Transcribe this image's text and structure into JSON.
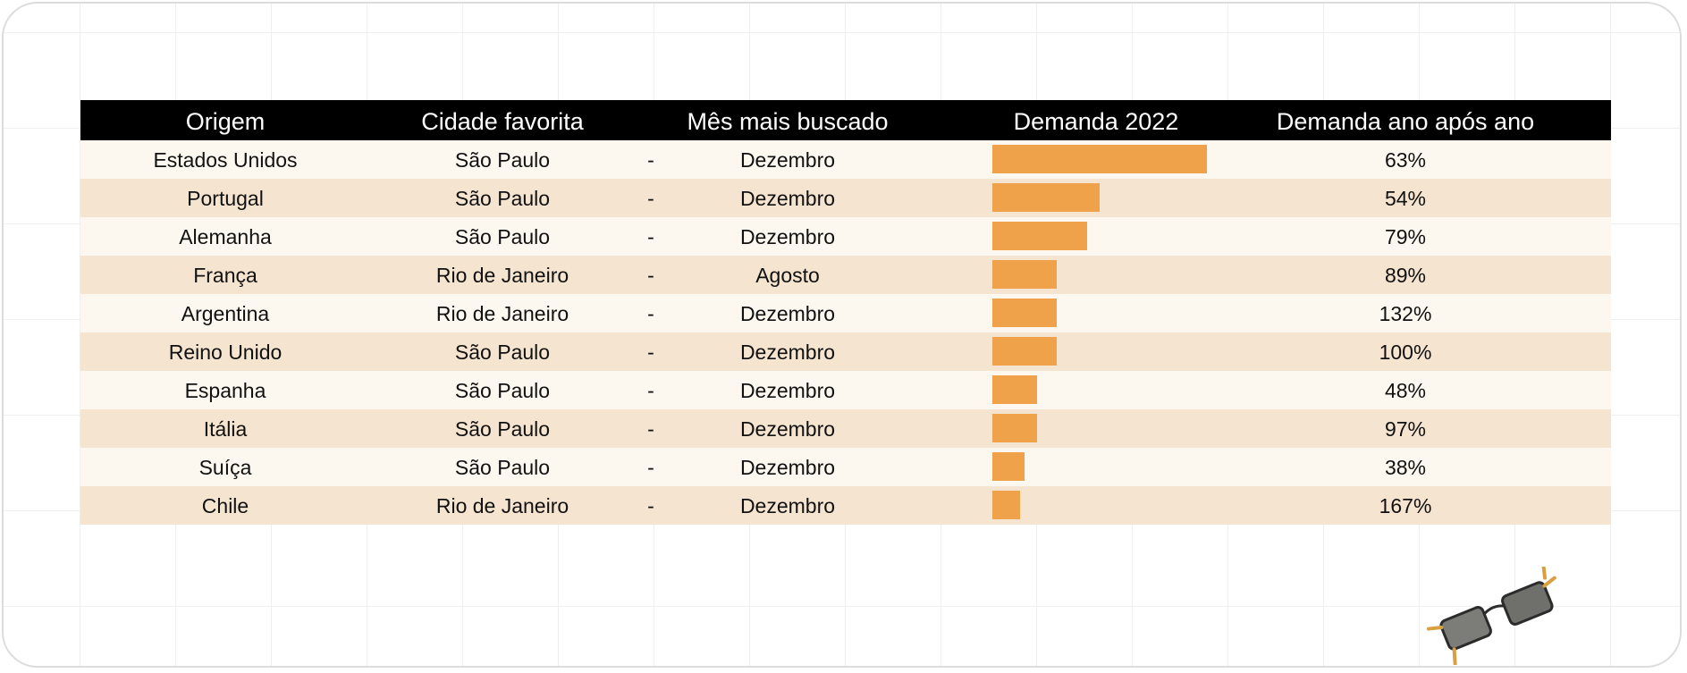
{
  "headers": [
    "Origem",
    "Cidade favorita",
    "Mês mais buscado",
    "Demanda 2022",
    "Demanda ano após ano"
  ],
  "separator": "-",
  "colors": {
    "header_bg": "#000000",
    "bar": "#efa24a",
    "row_light": "#fdf8ef",
    "row_dark": "#f5e4cf"
  },
  "chart_data": {
    "type": "table",
    "columns": [
      "Origem",
      "Cidade favorita",
      "Mês mais buscado",
      "Demanda 2022",
      "Demanda ano após ano"
    ],
    "rows": [
      {
        "origem": "Estados Unidos",
        "cidade": "São Paulo",
        "mes": "Dezembro",
        "demanda_2022": 1.0,
        "yoy": "63%"
      },
      {
        "origem": "Portugal",
        "cidade": "São Paulo",
        "mes": "Dezembro",
        "demanda_2022": 0.5,
        "yoy": "54%"
      },
      {
        "origem": "Alemanha",
        "cidade": "São Paulo",
        "mes": "Dezembro",
        "demanda_2022": 0.44,
        "yoy": "79%"
      },
      {
        "origem": "França",
        "cidade": "Rio de Janeiro",
        "mes": "Agosto",
        "demanda_2022": 0.3,
        "yoy": "89%"
      },
      {
        "origem": "Argentina",
        "cidade": "Rio de Janeiro",
        "mes": "Dezembro",
        "demanda_2022": 0.3,
        "yoy": "132%"
      },
      {
        "origem": "Reino Unido",
        "cidade": "São Paulo",
        "mes": "Dezembro",
        "demanda_2022": 0.3,
        "yoy": "100%"
      },
      {
        "origem": "Espanha",
        "cidade": "São Paulo",
        "mes": "Dezembro",
        "demanda_2022": 0.21,
        "yoy": "48%"
      },
      {
        "origem": "Itália",
        "cidade": "São Paulo",
        "mes": "Dezembro",
        "demanda_2022": 0.21,
        "yoy": "97%"
      },
      {
        "origem": "Suíça",
        "cidade": "São Paulo",
        "mes": "Dezembro",
        "demanda_2022": 0.15,
        "yoy": "38%"
      },
      {
        "origem": "Chile",
        "cidade": "Rio de Janeiro",
        "mes": "Dezembro",
        "demanda_2022": 0.13,
        "yoy": "167%"
      }
    ]
  },
  "decoration": {
    "icon": "sunglasses-icon"
  }
}
